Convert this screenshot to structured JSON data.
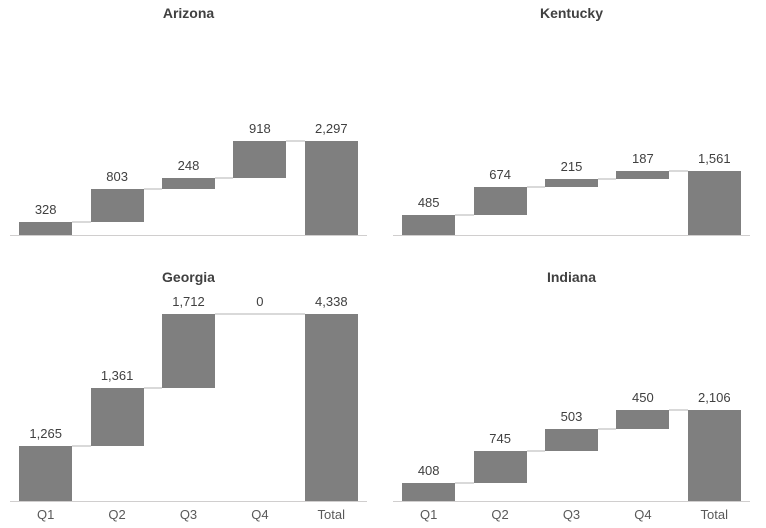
{
  "styles": {
    "background": "#ffffff",
    "bar_color": "#7f7f7f",
    "connector_color": "#d9d9d9",
    "axis_line_color": "#d0cece",
    "title_color": "#404040",
    "data_label_color": "#404040",
    "axis_label_color": "#595959"
  },
  "chart_data": [
    {
      "type": "waterfall",
      "title": "Arizona",
      "categories": [
        "Q1",
        "Q2",
        "Q3",
        "Q4",
        "Total"
      ],
      "values": [
        328,
        803,
        248,
        918
      ],
      "total": 2297,
      "data_labels": [
        "328",
        "803",
        "248",
        "918",
        "2,297"
      ],
      "x_axis_visible": false,
      "ylim": [
        0,
        5000
      ],
      "grid": false,
      "legend": false
    },
    {
      "type": "waterfall",
      "title": "Kentucky",
      "categories": [
        "Q1",
        "Q2",
        "Q3",
        "Q4",
        "Total"
      ],
      "values": [
        485,
        674,
        215,
        187
      ],
      "total": 1561,
      "data_labels": [
        "485",
        "674",
        "215",
        "187",
        "1,561"
      ],
      "x_axis_visible": false,
      "ylim": [
        0,
        5000
      ],
      "grid": false,
      "legend": false
    },
    {
      "type": "waterfall",
      "title": "Georgia",
      "categories": [
        "Q1",
        "Q2",
        "Q3",
        "Q4",
        "Total"
      ],
      "values": [
        1265,
        1361,
        1712,
        0
      ],
      "total": 4338,
      "data_labels": [
        "1,265",
        "1,361",
        "1,712",
        "0",
        "4,338"
      ],
      "x_axis_visible": true,
      "ylim": [
        0,
        5000
      ],
      "grid": false,
      "legend": false
    },
    {
      "type": "waterfall",
      "title": "Indiana",
      "categories": [
        "Q1",
        "Q2",
        "Q3",
        "Q4",
        "Total"
      ],
      "values": [
        408,
        745,
        503,
        450
      ],
      "total": 2106,
      "data_labels": [
        "408",
        "745",
        "503",
        "450",
        "2,106"
      ],
      "x_axis_visible": true,
      "ylim": [
        0,
        5000
      ],
      "grid": false,
      "legend": false
    }
  ]
}
